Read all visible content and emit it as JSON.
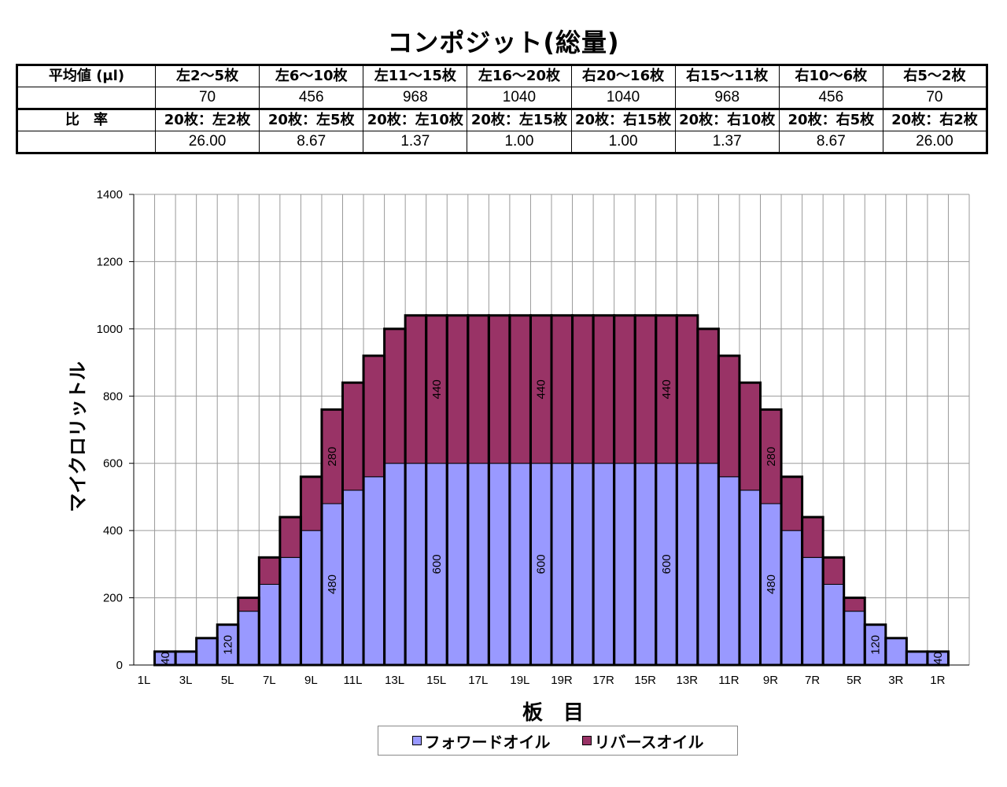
{
  "title": "コンポジット(総量)",
  "table": {
    "mean_label": "平均値 (μl)",
    "ratio_label": "比　率",
    "range_headers": [
      "左2～5枚",
      "左6～10枚",
      "左11～15枚",
      "左16～20枚",
      "右20～16枚",
      "右15～11枚",
      "右10～6枚",
      "右5～2枚"
    ],
    "mean_values": [
      "70",
      "456",
      "968",
      "1040",
      "1040",
      "968",
      "456",
      "70"
    ],
    "ratio_headers": [
      "20枚：左2枚",
      "20枚：左5枚",
      "20枚：左10枚",
      "20枚：左15枚",
      "20枚：右15枚",
      "20枚：右10枚",
      "20枚：右5枚",
      "20枚：右2枚"
    ],
    "ratio_values": [
      "26.00",
      "8.67",
      "1.37",
      "1.00",
      "1.00",
      "1.37",
      "8.67",
      "26.00"
    ]
  },
  "legend": {
    "forward_label": "フォワードオイル",
    "reverse_label": "リバースオイル"
  },
  "colors": {
    "forward": "#9999ff",
    "reverse": "#993366",
    "grid": "#9a9a9a",
    "bar_outline": "#000000"
  },
  "chart_data": {
    "type": "bar",
    "stacked": true,
    "categories": [
      "1L",
      "2L",
      "3L",
      "4L",
      "5L",
      "6L",
      "7L",
      "8L",
      "9L",
      "10L",
      "11L",
      "12L",
      "13L",
      "14L",
      "15L",
      "16L",
      "17L",
      "18L",
      "19L",
      "20L",
      "20R",
      "19R",
      "18R",
      "17R",
      "16R",
      "15R",
      "14R",
      "13R",
      "12R",
      "11R",
      "10R",
      "9R",
      "8R",
      "7R",
      "6R",
      "5R",
      "4R",
      "3R",
      "2R",
      "1R"
    ],
    "tick_labels": [
      "1L",
      "3L",
      "5L",
      "7L",
      "9L",
      "11L",
      "13L",
      "15L",
      "17L",
      "19L",
      "19R",
      "17R",
      "15R",
      "13R",
      "11R",
      "9R",
      "7R",
      "5R",
      "3R",
      "1R"
    ],
    "series": [
      {
        "name": "フォワードオイル",
        "values": [
          0,
          40,
          40,
          80,
          120,
          160,
          240,
          320,
          400,
          480,
          520,
          560,
          600,
          600,
          600,
          600,
          600,
          600,
          600,
          600,
          600,
          600,
          600,
          600,
          600,
          600,
          600,
          600,
          560,
          520,
          480,
          400,
          320,
          240,
          160,
          120,
          80,
          40,
          40,
          0
        ]
      },
      {
        "name": "リバースオイル",
        "values": [
          0,
          0,
          0,
          0,
          0,
          40,
          80,
          120,
          160,
          280,
          320,
          360,
          400,
          440,
          440,
          440,
          440,
          440,
          440,
          440,
          440,
          440,
          440,
          440,
          440,
          440,
          440,
          400,
          360,
          320,
          280,
          160,
          120,
          80,
          40,
          0,
          0,
          0,
          0,
          0
        ]
      }
    ],
    "data_labels": [
      {
        "category": "2L",
        "series": 0,
        "text": "40"
      },
      {
        "category": "5L",
        "series": 0,
        "text": "120"
      },
      {
        "category": "10L",
        "series": 0,
        "text": "480"
      },
      {
        "category": "10L",
        "series": 1,
        "text": "280"
      },
      {
        "category": "15L",
        "series": 0,
        "text": "600"
      },
      {
        "category": "15L",
        "series": 1,
        "text": "440"
      },
      {
        "category": "20L",
        "series": 0,
        "text": "600"
      },
      {
        "category": "20L",
        "series": 1,
        "text": "440"
      },
      {
        "category": "15R",
        "series": 0,
        "text": "600"
      },
      {
        "category": "15R",
        "series": 1,
        "text": "440"
      },
      {
        "category": "10R",
        "series": 0,
        "text": "480"
      },
      {
        "category": "10R",
        "series": 1,
        "text": "280"
      },
      {
        "category": "5R",
        "series": 0,
        "text": "120"
      },
      {
        "category": "2R",
        "series": 0,
        "text": "40"
      }
    ],
    "xlabel": "板　目",
    "ylabel": "マイクロリットル",
    "ylim": [
      0,
      1400
    ],
    "yticks": [
      0,
      200,
      400,
      600,
      800,
      1000,
      1200,
      1400
    ],
    "grid": true,
    "legend_position": "bottom"
  }
}
